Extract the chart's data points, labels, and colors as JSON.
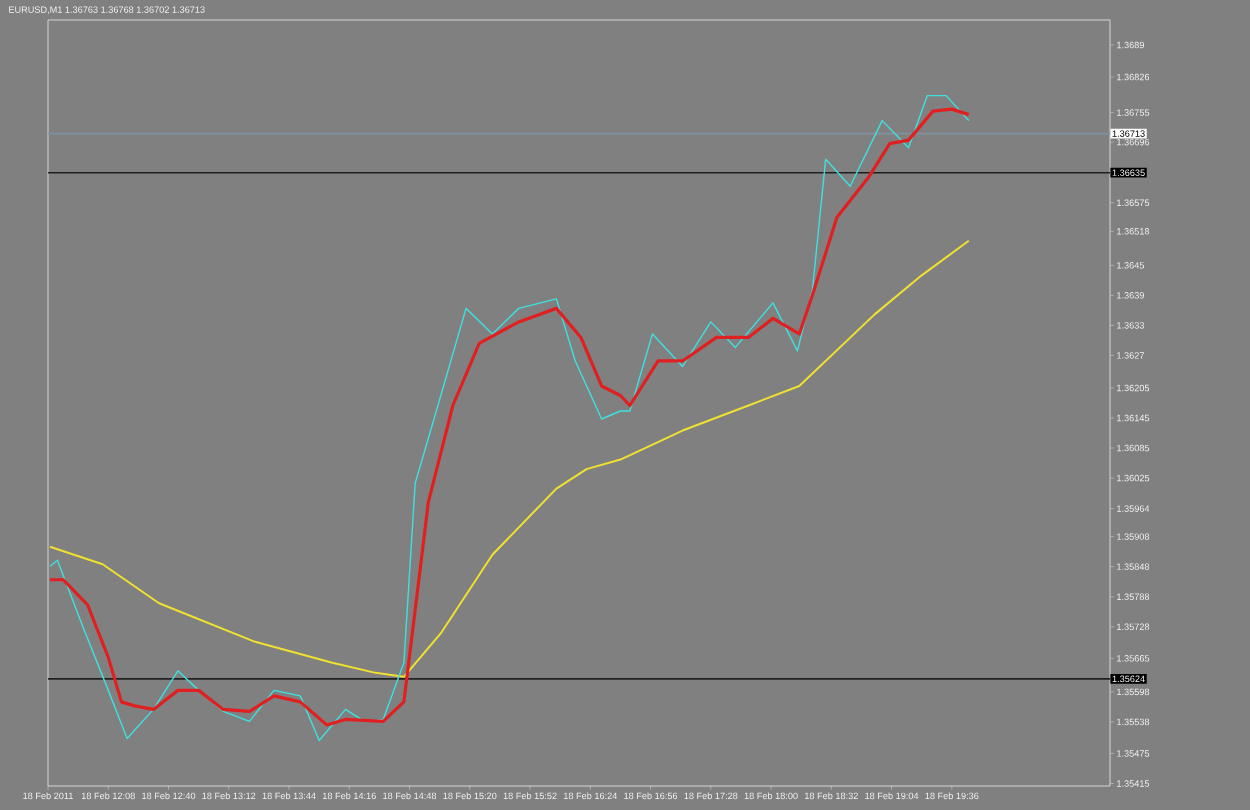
{
  "chart_data": {
    "type": "line",
    "title": "EURUSD,M1  1.36763 1.36768 1.36702 1.36713",
    "xlim": [
      "2011-02-18T11:36",
      "2011-02-18T21:00"
    ],
    "xticks": [
      {
        "value": "2011-02-18T11:36",
        "label": "18 Feb 2011"
      },
      {
        "value": "2011-02-18T12:08",
        "label": "18 Feb 12:08"
      },
      {
        "value": "2011-02-18T12:40",
        "label": "18 Feb 12:40"
      },
      {
        "value": "2011-02-18T13:12",
        "label": "18 Feb 13:12"
      },
      {
        "value": "2011-02-18T13:44",
        "label": "18 Feb 13:44"
      },
      {
        "value": "2011-02-18T14:16",
        "label": "18 Feb 14:16"
      },
      {
        "value": "2011-02-18T14:48",
        "label": "18 Feb 14:48"
      },
      {
        "value": "2011-02-18T15:20",
        "label": "18 Feb 15:20"
      },
      {
        "value": "2011-02-18T15:52",
        "label": "18 Feb 15:52"
      },
      {
        "value": "2011-02-18T16:24",
        "label": "18 Feb 16:24"
      },
      {
        "value": "2011-02-18T16:56",
        "label": "18 Feb 16:56"
      },
      {
        "value": "2011-02-18T17:28",
        "label": "18 Feb 17:28"
      },
      {
        "value": "2011-02-18T18:00",
        "label": "18 Feb 18:00"
      },
      {
        "value": "2011-02-18T18:32",
        "label": "18 Feb 18:32"
      },
      {
        "value": "2011-02-18T19:04",
        "label": "18 Feb 19:04"
      },
      {
        "value": "2011-02-18T19:36",
        "label": "18 Feb 19:36"
      }
    ],
    "ylim": [
      1.3541,
      1.3694
    ],
    "yticks": [
      1.3689,
      1.36826,
      1.36755,
      1.36696,
      1.36575,
      1.36518,
      1.3645,
      1.3639,
      1.3633,
      1.3627,
      1.36205,
      1.36145,
      1.36085,
      1.36025,
      1.35964,
      1.35908,
      1.35848,
      1.35788,
      1.35728,
      1.35665,
      1.35598,
      1.35538,
      1.35475,
      1.35415
    ],
    "ref_lines": [
      {
        "axis": "y",
        "value": 1.36713,
        "label": "1.36713",
        "color": "#8090a0"
      },
      {
        "axis": "y",
        "value": 1.36635,
        "label": "1.36635",
        "color": "#202020"
      },
      {
        "axis": "y",
        "value": 1.35624,
        "label": "1.35624",
        "color": "#202020"
      }
    ],
    "series": [
      {
        "color": "#f0e030",
        "x": [
          "2011-02-18T11:37",
          "2011-02-18T12:05",
          "2011-02-18T12:35",
          "2011-02-18T13:26",
          "2011-02-18T14:07",
          "2011-02-18T14:30",
          "2011-02-18T14:45",
          "2011-02-18T15:05",
          "2011-02-18T15:32",
          "2011-02-18T16:06",
          "2011-02-18T16:22",
          "2011-02-18T16:40",
          "2011-02-18T17:13",
          "2011-02-18T17:48",
          "2011-02-18T18:15",
          "2011-02-18T18:55",
          "2011-02-18T19:20",
          "2011-02-18T19:45"
        ],
        "values": [
          1.35888,
          1.35853,
          1.35775,
          1.35698,
          1.35656,
          1.35636,
          1.35628,
          1.35717,
          1.35872,
          1.36004,
          1.36043,
          1.36062,
          1.3612,
          1.3617,
          1.36209,
          1.36352,
          1.3643,
          1.36499
        ]
      },
      {
        "color": "#40e0e0",
        "x": [
          "2011-02-18T11:37",
          "2011-02-18T11:41",
          "2011-02-18T11:54",
          "2011-02-18T12:08",
          "2011-02-18T12:18",
          "2011-02-18T12:32",
          "2011-02-18T12:45",
          "2011-02-18T12:56",
          "2011-02-18T13:09",
          "2011-02-18T13:23",
          "2011-02-18T13:36",
          "2011-02-18T13:50",
          "2011-02-18T14:00",
          "2011-02-18T14:14",
          "2011-02-18T14:24",
          "2011-02-18T14:34",
          "2011-02-18T14:45",
          "2011-02-18T14:51",
          "2011-02-18T15:01",
          "2011-02-18T15:18",
          "2011-02-18T15:32",
          "2011-02-18T15:46",
          "2011-02-18T16:06",
          "2011-02-18T16:16",
          "2011-02-18T16:30",
          "2011-02-18T16:40",
          "2011-02-18T16:45",
          "2011-02-18T16:57",
          "2011-02-18T17:13",
          "2011-02-18T17:28",
          "2011-02-18T17:41",
          "2011-02-18T18:01",
          "2011-02-18T18:14",
          "2011-02-18T18:22",
          "2011-02-18T18:29",
          "2011-02-18T18:42",
          "2011-02-18T18:59",
          "2011-02-18T19:13",
          "2011-02-18T19:23",
          "2011-02-18T19:33",
          "2011-02-18T19:45"
        ],
        "values": [
          1.35849,
          1.35861,
          1.35733,
          1.35601,
          1.35505,
          1.35563,
          1.3564,
          1.35601,
          1.35559,
          1.35539,
          1.35601,
          1.3559,
          1.35501,
          1.35563,
          1.35539,
          1.35543,
          1.35656,
          1.36015,
          1.36143,
          1.36364,
          1.36313,
          1.36364,
          1.36383,
          1.36259,
          1.36143,
          1.36159,
          1.36159,
          1.36313,
          1.36248,
          1.36337,
          1.36286,
          1.36375,
          1.36279,
          1.36402,
          1.36662,
          1.36608,
          1.36739,
          1.36685,
          1.36789,
          1.36789,
          1.36739
        ]
      },
      {
        "color": "#e02020",
        "x": [
          "2011-02-18T11:37",
          "2011-02-18T11:44",
          "2011-02-18T11:57",
          "2011-02-18T12:08",
          "2011-02-18T12:15",
          "2011-02-18T12:22",
          "2011-02-18T12:32",
          "2011-02-18T12:45",
          "2011-02-18T12:56",
          "2011-02-18T13:09",
          "2011-02-18T13:23",
          "2011-02-18T13:36",
          "2011-02-18T13:50",
          "2011-02-18T14:04",
          "2011-02-18T14:14",
          "2011-02-18T14:34",
          "2011-02-18T14:45",
          "2011-02-18T14:58",
          "2011-02-18T15:11",
          "2011-02-18T15:25",
          "2011-02-18T15:46",
          "2011-02-18T16:06",
          "2011-02-18T16:19",
          "2011-02-18T16:30",
          "2011-02-18T16:40",
          "2011-02-18T16:45",
          "2011-02-18T17:00",
          "2011-02-18T17:13",
          "2011-02-18T17:31",
          "2011-02-18T17:48",
          "2011-02-18T18:01",
          "2011-02-18T18:15",
          "2011-02-18T18:22",
          "2011-02-18T18:35",
          "2011-02-18T18:52",
          "2011-02-18T19:03",
          "2011-02-18T19:13",
          "2011-02-18T19:26",
          "2011-02-18T19:36",
          "2011-02-18T19:45"
        ],
        "values": [
          1.35822,
          1.35822,
          1.35772,
          1.35667,
          1.35578,
          1.3557,
          1.35563,
          1.35601,
          1.35601,
          1.35563,
          1.35559,
          1.3559,
          1.35578,
          1.35532,
          1.35543,
          1.35539,
          1.35578,
          1.35977,
          1.3617,
          1.36294,
          1.36337,
          1.36364,
          1.36306,
          1.36209,
          1.3619,
          1.3617,
          1.36259,
          1.36259,
          1.36306,
          1.36306,
          1.36344,
          1.36313,
          1.36391,
          1.36546,
          1.36627,
          1.36693,
          1.367,
          1.36758,
          1.36762,
          1.36751
        ]
      }
    ]
  }
}
